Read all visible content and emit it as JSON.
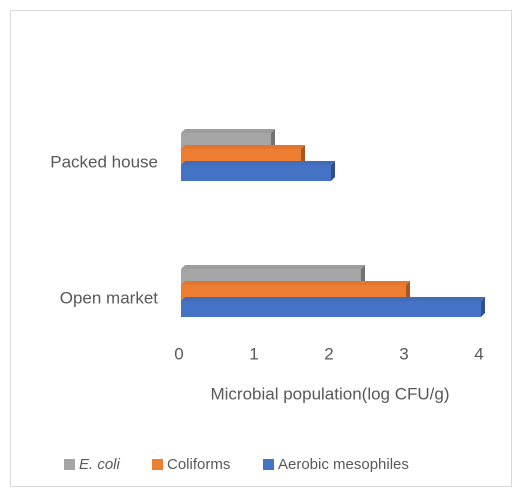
{
  "chart_data": {
    "type": "bar",
    "orientation": "horizontal",
    "categories": [
      "Open market",
      "Packed house"
    ],
    "series": [
      {
        "name": "E. coli",
        "color": "#a5a5a5",
        "values": [
          2.4,
          1.2
        ]
      },
      {
        "name": "Coliforms",
        "color": "#ed7d31",
        "values": [
          3.0,
          1.6
        ]
      },
      {
        "name": "Aerobic mesophiles",
        "color": "#4472c4",
        "values": [
          4.0,
          2.0
        ]
      }
    ],
    "x_label": "Microbial population(log CFU/g)",
    "xlim": [
      0,
      4
    ],
    "xticks": [
      0,
      1,
      2,
      3,
      4
    ],
    "grid": false,
    "legend": "bottom"
  }
}
